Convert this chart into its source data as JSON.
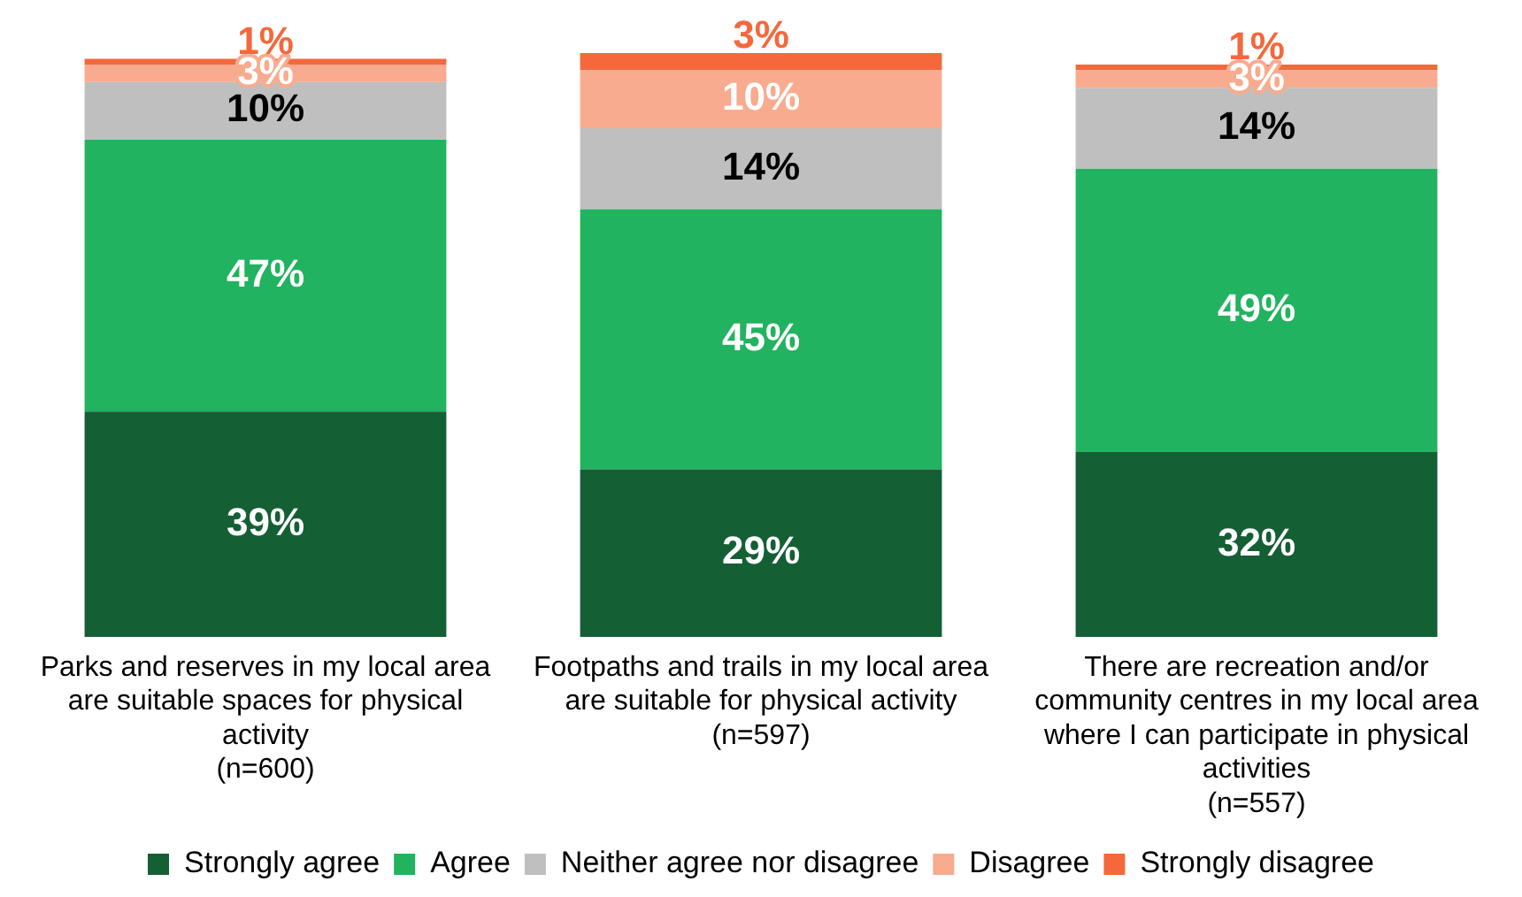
{
  "chart_data": {
    "type": "bar",
    "stacked": true,
    "legend": "bottom",
    "grid": false,
    "tick_labels": "x",
    "categories": [
      "Parks and reserves in my local area are suitable spaces for physical activity (n=600)",
      "Footpaths and trails in my local area are suitable for physical activity (n=597)",
      "There are recreation and/or community centres in my local area where I can participate in physical activities (n=557)"
    ],
    "series": [
      {
        "name": "Strongly agree",
        "color": "#155f35",
        "values": [
          39,
          29,
          32
        ],
        "value_labels": [
          "39%",
          "29%",
          "32%"
        ]
      },
      {
        "name": "Agree",
        "color": "#21b35f",
        "values": [
          47,
          45,
          49
        ],
        "value_labels": [
          "47%",
          "45%",
          "49%"
        ]
      },
      {
        "name": "Neither agree nor disagree",
        "color": "#bfbfbf",
        "values": [
          10,
          14,
          14
        ],
        "value_labels": [
          "10%",
          "14%",
          "14%"
        ]
      },
      {
        "name": "Disagree",
        "color": "#f8ab8f",
        "values": [
          3,
          10,
          3
        ],
        "value_labels": [
          "3%",
          "10%",
          "3%"
        ]
      },
      {
        "name": "Strongly disagree",
        "color": "#f4683c",
        "values": [
          1,
          3,
          1
        ],
        "value_labels": [
          "1%",
          "3%",
          "1%"
        ]
      }
    ]
  }
}
